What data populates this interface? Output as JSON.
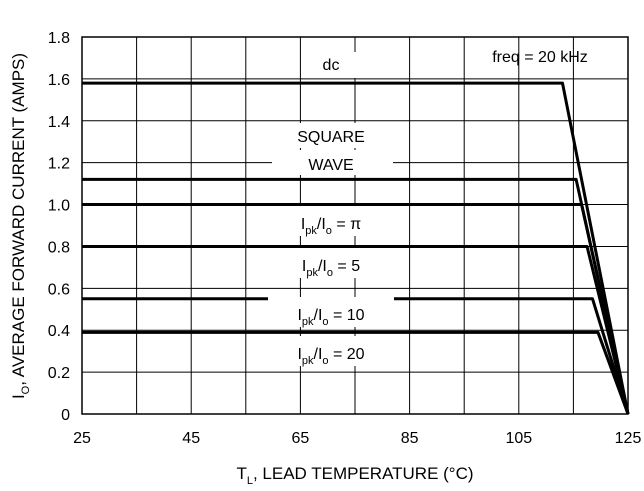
{
  "chart_data": {
    "type": "line",
    "xlabel": "T",
    "xlabel_sub": "L",
    "xlabel_rest": ", LEAD TEMPERATURE (°C)",
    "ylabel": "I",
    "ylabel_sub": "O",
    "ylabel_rest": ", AVERAGE FORWARD CURRENT (AMPS)",
    "xlim": [
      25,
      125
    ],
    "ylim": [
      0,
      1.8
    ],
    "x_ticks": [
      25,
      45,
      65,
      85,
      105,
      125
    ],
    "y_ticks": [
      "0",
      "0.2",
      "0.4",
      "0.6",
      "0.8",
      "1.0",
      "1.2",
      "1.4",
      "1.6",
      "1.8"
    ],
    "grid": true,
    "series": [
      {
        "x": [
          25,
          113,
          125
        ],
        "y": [
          1.58,
          1.58,
          0
        ]
      },
      {
        "x": [
          25,
          115.5,
          125
        ],
        "y": [
          1.12,
          1.12,
          0
        ]
      },
      {
        "x": [
          25,
          116.5,
          125
        ],
        "y": [
          1.0,
          1.0,
          0
        ]
      },
      {
        "x": [
          25,
          117.5,
          125
        ],
        "y": [
          0.8,
          0.8,
          0
        ]
      },
      {
        "x": [
          25,
          118.5,
          125
        ],
        "y": [
          0.55,
          0.55,
          0
        ]
      },
      {
        "x": [
          25,
          119.5,
          125
        ],
        "y": [
          0.39,
          0.39,
          0
        ]
      }
    ],
    "annotations": [
      {
        "text": "freq = 20 kHz"
      },
      {
        "text": "dc"
      },
      {
        "text": "SQUARE"
      },
      {
        "text": "WAVE"
      },
      {
        "main": "I",
        "sub1": "pk",
        "mid": "/I",
        "sub2": "o",
        "tail": " = π"
      },
      {
        "main": "I",
        "sub1": "pk",
        "mid": "/I",
        "sub2": "o",
        "tail": " = 5"
      },
      {
        "main": "I",
        "sub1": "pk",
        "mid": "/I",
        "sub2": "o",
        "tail": " = 10"
      },
      {
        "main": "I",
        "sub1": "pk",
        "mid": "/I",
        "sub2": "o",
        "tail": " = 20"
      }
    ]
  }
}
